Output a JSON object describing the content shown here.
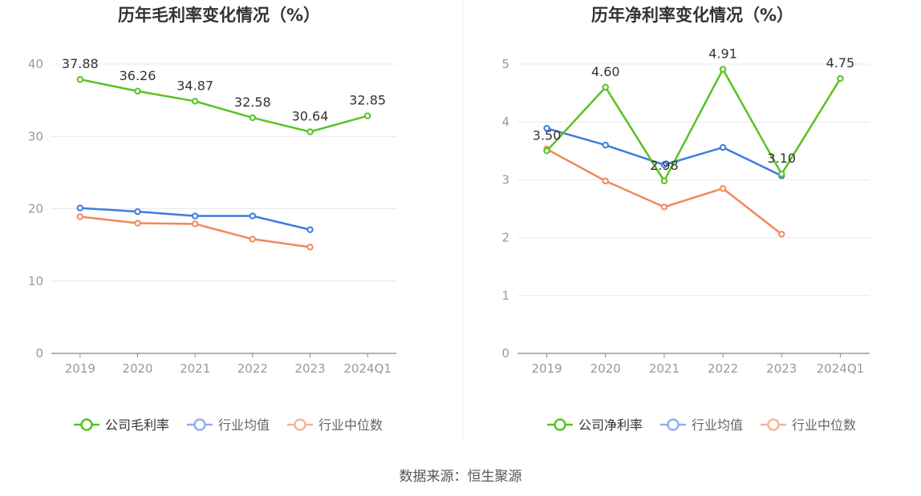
{
  "source": "数据来源：恒生聚源",
  "colors": {
    "company": "#58c322",
    "industry_avg": "#3e7ce0",
    "industry_median": "#f2875e",
    "grid": "#e5e8f0",
    "axis": "#999999"
  },
  "chart_data": [
    {
      "type": "line",
      "title": "历年毛利率变化情况（%）",
      "categories": [
        "2019",
        "2020",
        "2021",
        "2022",
        "2023",
        "2024Q1"
      ],
      "ylim": [
        0,
        40
      ],
      "yticks": [
        0,
        10,
        20,
        30,
        40
      ],
      "grid": true,
      "legend_position": "bottom",
      "series": [
        {
          "name": "公司毛利率",
          "values": [
            37.88,
            36.26,
            34.87,
            32.58,
            30.64,
            32.85
          ],
          "labels": [
            "37.88",
            "36.26",
            "34.87",
            "32.58",
            "30.64",
            "32.85"
          ]
        },
        {
          "name": "行业均值",
          "values": [
            20.1,
            19.6,
            19.0,
            19.0,
            17.1,
            null
          ]
        },
        {
          "name": "行业中位数",
          "values": [
            18.9,
            18.0,
            17.9,
            15.8,
            14.7,
            null
          ]
        }
      ]
    },
    {
      "type": "line",
      "title": "历年净利率变化情况（%）",
      "categories": [
        "2019",
        "2020",
        "2021",
        "2022",
        "2023",
        "2024Q1"
      ],
      "ylim": [
        0,
        5
      ],
      "yticks": [
        0,
        1,
        2,
        3,
        4,
        5
      ],
      "grid": true,
      "legend_position": "bottom",
      "series": [
        {
          "name": "公司净利率",
          "values": [
            3.5,
            4.6,
            2.98,
            4.91,
            3.1,
            4.75
          ],
          "labels": [
            "3.50",
            "4.60",
            "2.98",
            "4.91",
            "3.10",
            "4.75"
          ]
        },
        {
          "name": "行业均值",
          "values": [
            3.89,
            3.6,
            3.26,
            3.56,
            3.07,
            null
          ]
        },
        {
          "name": "行业中位数",
          "values": [
            3.53,
            2.98,
            2.53,
            2.85,
            2.06,
            null
          ]
        }
      ]
    }
  ]
}
